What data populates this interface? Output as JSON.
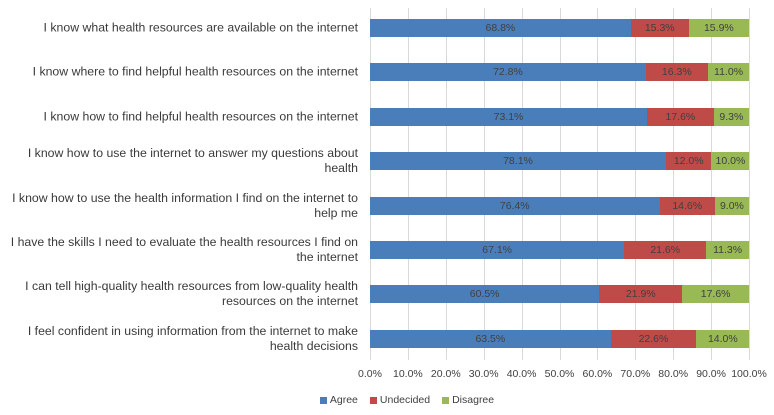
{
  "chart_data": {
    "type": "bar",
    "orientation": "horizontal",
    "stacked": true,
    "categories": [
      "I know what health resources are available on the internet",
      "I know where to find helpful health resources on the internet",
      "I know how to find helpful health resources on the internet",
      "I know how to use the internet to answer my questions about health",
      "I know how to use the health information I find on the internet to help me",
      "I have the skills I need to evaluate the health resources I find on the internet",
      "I can tell high-quality health resources from low-quality health resources on the internet",
      "I feel confident in using information from the internet to make health decisions"
    ],
    "series": [
      {
        "name": "Agree",
        "color": "#4a7ebb",
        "values": [
          68.8,
          72.8,
          73.1,
          78.1,
          76.4,
          67.1,
          60.5,
          63.5
        ]
      },
      {
        "name": "Undecided",
        "color": "#be4b48",
        "values": [
          15.3,
          16.3,
          17.6,
          12.0,
          14.6,
          21.6,
          21.9,
          22.6
        ]
      },
      {
        "name": "Disagree",
        "color": "#98b954",
        "values": [
          15.9,
          11.0,
          9.3,
          10.0,
          9.0,
          11.3,
          17.6,
          14.0
        ]
      }
    ],
    "xlim": [
      0,
      100
    ],
    "xticks": [
      "0.0%",
      "10.0%",
      "20.0%",
      "30.0%",
      "40.0%",
      "50.0%",
      "60.0%",
      "70.0%",
      "80.0%",
      "90.0%",
      "100.0%"
    ],
    "grid": true,
    "legend_position": "bottom",
    "title": "",
    "xlabel": "",
    "ylabel": ""
  }
}
